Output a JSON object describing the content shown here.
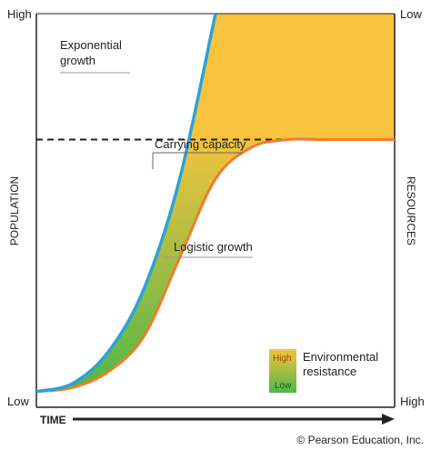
{
  "chart_data": {
    "type": "line",
    "x": [
      0,
      1,
      2,
      3,
      4,
      5,
      6,
      7,
      8,
      9,
      10
    ],
    "series": [
      {
        "name": "Exponential growth",
        "values": [
          0.04,
          0.06,
          0.14,
          0.3,
          0.58,
          1.0,
          null,
          null,
          null,
          null,
          null
        ]
      },
      {
        "name": "Logistic growth",
        "values": [
          0.04,
          0.05,
          0.09,
          0.18,
          0.38,
          0.58,
          0.66,
          0.68,
          0.68,
          0.68,
          0.68
        ]
      },
      {
        "name": "Carrying capacity",
        "values": [
          0.68,
          0.68,
          0.68,
          0.68,
          0.68,
          0.68,
          0.68,
          0.68,
          0.68,
          0.68,
          0.68
        ]
      }
    ],
    "xlabel": "TIME",
    "ylabel": "POPULATION",
    "ylabel_right": "RESOURCES",
    "y_left_ticks": {
      "top": "High",
      "bottom": "Low"
    },
    "y_right_ticks": {
      "top": "Low",
      "bottom": "High"
    },
    "annotations": {
      "exponential_line1": "Exponential",
      "exponential_line2": "growth",
      "carrying_capacity": "Carrying capacity",
      "logistic": "Logistic growth"
    },
    "legend": {
      "title_line1": "Environmental",
      "title_line2": "resistance",
      "high": "High",
      "low": "Low",
      "placement": "bottom-right"
    },
    "colors": {
      "exponential": "#29a3d9",
      "logistic": "#f07c2c",
      "capacity": "#222222",
      "resistance_high": "#f7c23e",
      "resistance_low": "#4db848"
    },
    "grid": false
  },
  "copyright": "© Pearson Education, Inc."
}
